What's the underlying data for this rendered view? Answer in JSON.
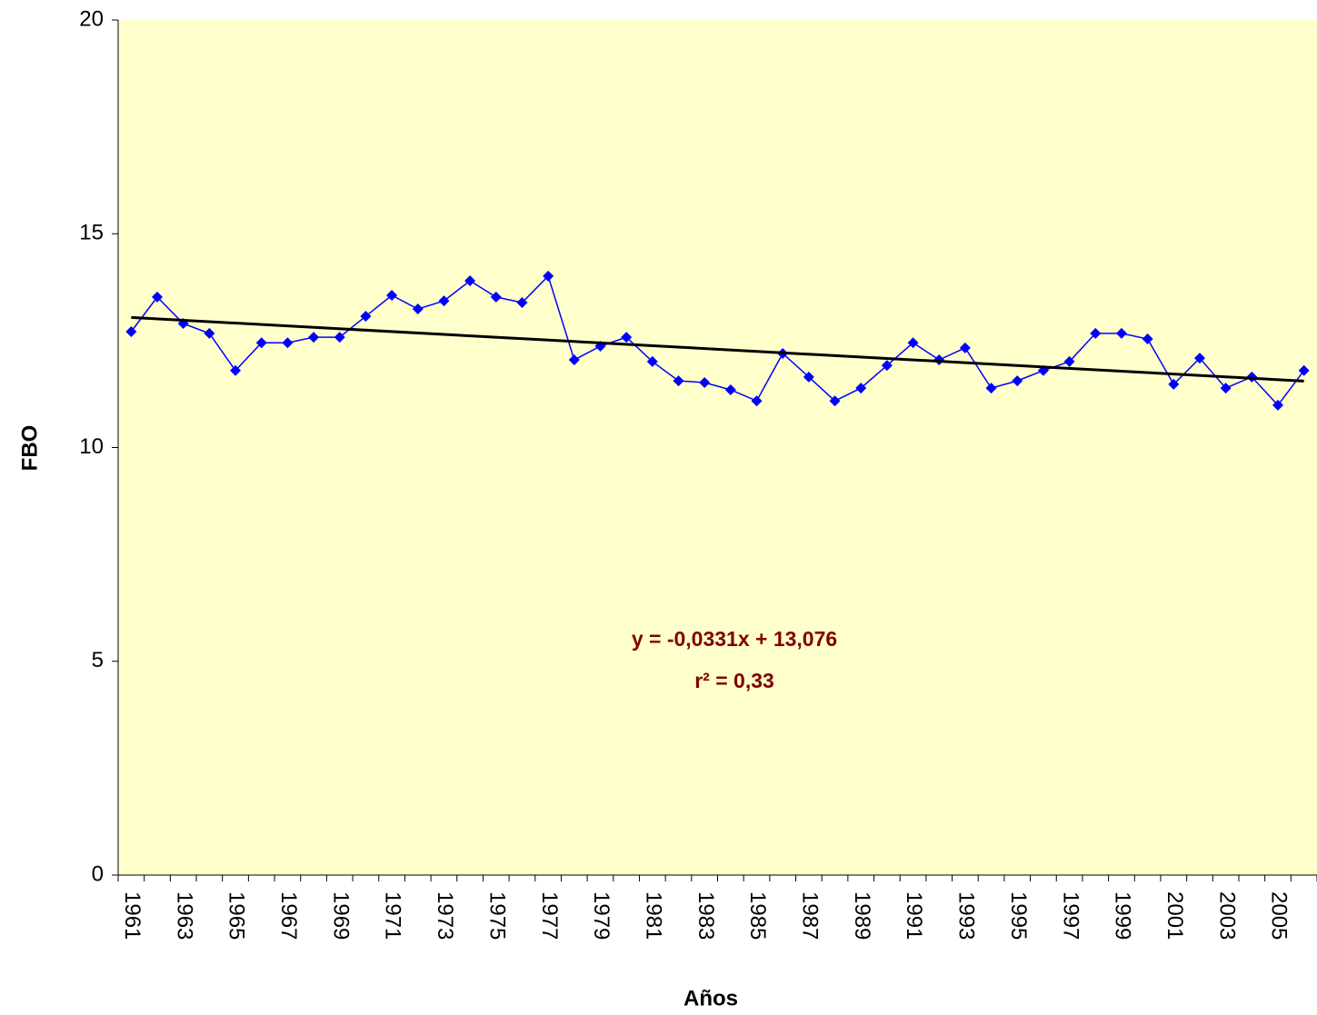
{
  "chart_data": {
    "type": "line",
    "x_label": "Años",
    "y_label": "FBO",
    "categories": [
      "1961",
      null,
      "1963",
      null,
      "1965",
      null,
      "1967",
      null,
      "1969",
      null,
      "1971",
      null,
      "1973",
      null,
      "1975",
      null,
      "1977",
      null,
      "1979",
      null,
      "1981",
      null,
      "1983",
      null,
      "1985",
      null,
      "1987",
      null,
      "1989",
      null,
      "1991",
      null,
      "1993",
      null,
      "1995",
      null,
      "1997",
      null,
      "1999",
      null,
      "2001",
      null,
      "2003",
      null,
      "2005",
      null
    ],
    "series": [
      {
        "color": "#0000ff",
        "values": [
          12.71,
          13.52,
          12.9,
          12.67,
          11.8,
          12.45,
          12.45,
          12.58,
          12.58,
          13.07,
          13.56,
          13.24,
          13.43,
          13.9,
          13.52,
          13.39,
          14.01,
          12.05,
          12.37,
          12.58,
          12.01,
          11.56,
          11.52,
          11.35,
          11.09,
          12.2,
          11.65,
          11.09,
          11.39,
          11.92,
          12.45,
          12.05,
          12.33,
          11.39,
          11.56,
          11.8,
          12.01,
          12.67,
          12.67,
          12.54,
          11.48,
          12.09,
          11.39,
          11.65,
          10.99,
          11.8
        ]
      }
    ],
    "trendline": {
      "slope": -0.0331,
      "intercept": 13.076,
      "color": "#000000"
    },
    "annotations": [
      {
        "text": "y = -0,0331x + 13,076",
        "color": "#800000"
      },
      {
        "text": "r² = 0,33",
        "color": "#800000"
      }
    ],
    "ylim": [
      0,
      20
    ],
    "yticks": [
      0,
      5,
      10,
      15,
      20
    ],
    "plot_background": "#ffffcc"
  }
}
